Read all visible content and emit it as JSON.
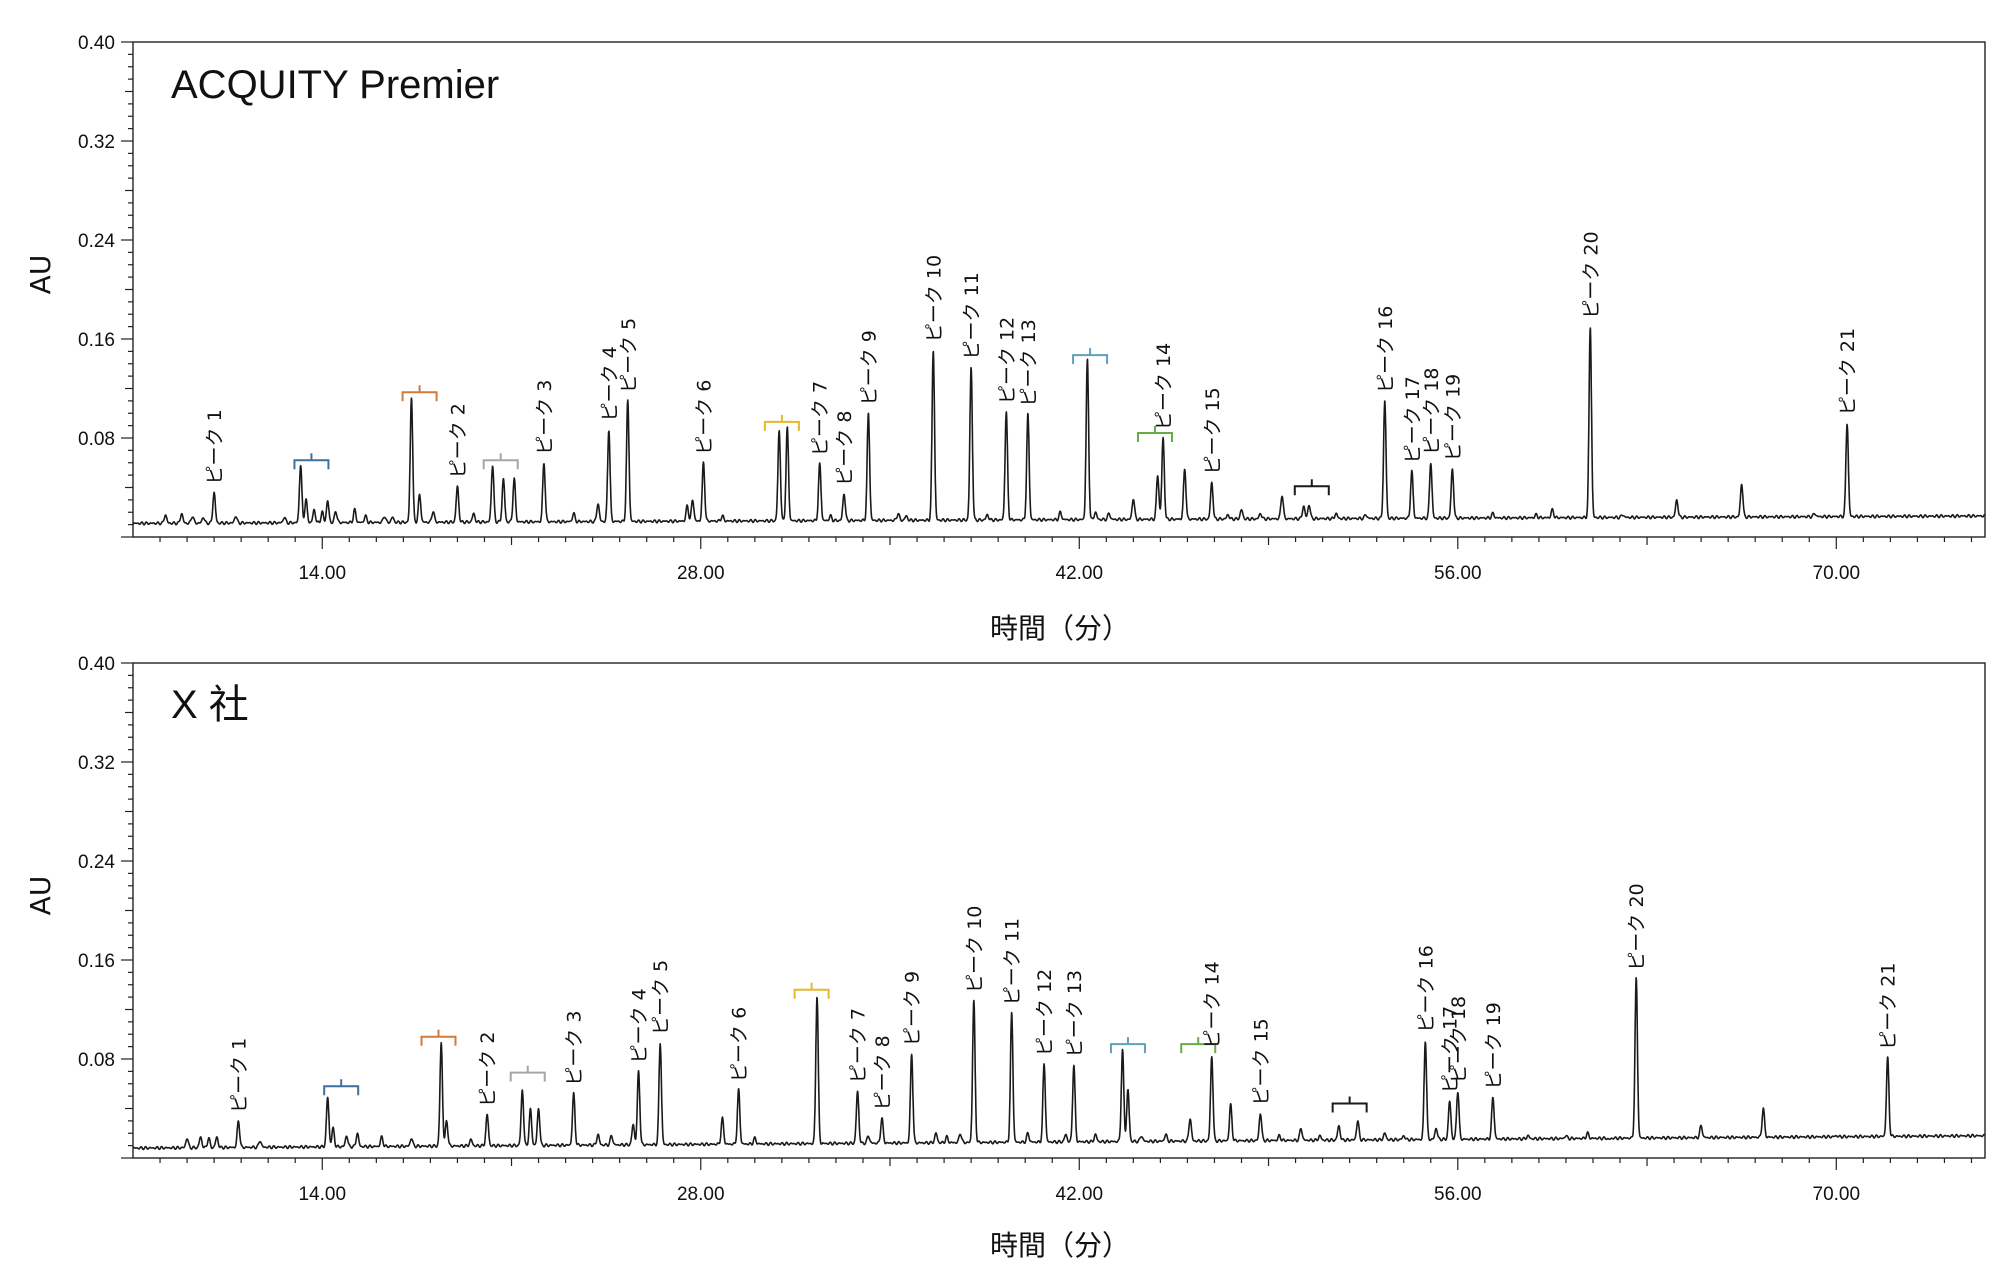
{
  "chart_data": [
    {
      "type": "line",
      "title": "ACQUITY Premier",
      "xlabel": "時間（分）",
      "ylabel": "AU",
      "xlim": [
        7.0,
        75.5
      ],
      "ylim": [
        0,
        0.4
      ],
      "x_ticks": [
        14.0,
        28.0,
        42.0,
        56.0,
        70.0
      ],
      "x_tick_labels": [
        "14.00",
        "28.00",
        "42.00",
        "56.00",
        "70.00"
      ],
      "y_ticks": [
        0.4,
        0.32,
        0.24,
        0.16,
        0.08
      ],
      "y_tick_labels": [
        "0.40",
        "0.32",
        "0.24",
        "0.16",
        "0.08"
      ],
      "grid": false,
      "baseline": [
        [
          7.0,
          0.011
        ],
        [
          75.5,
          0.017
        ]
      ],
      "peaks": [
        {
          "x": 8.2,
          "y": 0.018
        },
        {
          "x": 8.8,
          "y": 0.019
        },
        {
          "x": 9.2,
          "y": 0.017
        },
        {
          "x": 9.6,
          "y": 0.016
        },
        {
          "x": 10.0,
          "y": 0.036,
          "label": "ピーク 1"
        },
        {
          "x": 10.8,
          "y": 0.017
        },
        {
          "x": 12.6,
          "y": 0.016
        },
        {
          "x": 13.2,
          "y": 0.058
        },
        {
          "x": 13.4,
          "y": 0.03
        },
        {
          "x": 13.7,
          "y": 0.022
        },
        {
          "x": 14.0,
          "y": 0.02
        },
        {
          "x": 14.2,
          "y": 0.029
        },
        {
          "x": 14.5,
          "y": 0.021
        },
        {
          "x": 15.2,
          "y": 0.022
        },
        {
          "x": 15.6,
          "y": 0.017
        },
        {
          "x": 16.3,
          "y": 0.017
        },
        {
          "x": 16.6,
          "y": 0.016
        },
        {
          "x": 17.3,
          "y": 0.113
        },
        {
          "x": 17.6,
          "y": 0.034
        },
        {
          "x": 18.1,
          "y": 0.021
        },
        {
          "x": 19.0,
          "y": 0.041,
          "label": "ピーク 2"
        },
        {
          "x": 19.6,
          "y": 0.019
        },
        {
          "x": 20.3,
          "y": 0.058
        },
        {
          "x": 20.7,
          "y": 0.047
        },
        {
          "x": 21.1,
          "y": 0.047
        },
        {
          "x": 22.2,
          "y": 0.06,
          "label": "ピーク 3"
        },
        {
          "x": 23.3,
          "y": 0.019
        },
        {
          "x": 24.2,
          "y": 0.027
        },
        {
          "x": 24.6,
          "y": 0.087,
          "label": "ピーク 4"
        },
        {
          "x": 25.3,
          "y": 0.11,
          "label": "ピーク 5"
        },
        {
          "x": 27.5,
          "y": 0.025
        },
        {
          "x": 27.7,
          "y": 0.03
        },
        {
          "x": 28.1,
          "y": 0.06,
          "label": "ピーク 6"
        },
        {
          "x": 28.8,
          "y": 0.017
        },
        {
          "x": 30.9,
          "y": 0.086
        },
        {
          "x": 31.2,
          "y": 0.088
        },
        {
          "x": 32.4,
          "y": 0.059,
          "label": "ピーク 7"
        },
        {
          "x": 32.8,
          "y": 0.017
        },
        {
          "x": 33.3,
          "y": 0.035,
          "label": "ピーク 8"
        },
        {
          "x": 34.2,
          "y": 0.1,
          "label": "ピーク 9"
        },
        {
          "x": 35.3,
          "y": 0.019
        },
        {
          "x": 35.6,
          "y": 0.017
        },
        {
          "x": 36.6,
          "y": 0.151,
          "label": "ピーク 10"
        },
        {
          "x": 38.0,
          "y": 0.137,
          "label": "ピーク 11"
        },
        {
          "x": 38.6,
          "y": 0.018
        },
        {
          "x": 39.3,
          "y": 0.101,
          "label": "ピーク 12"
        },
        {
          "x": 40.1,
          "y": 0.099,
          "label": "ピーク 13"
        },
        {
          "x": 41.3,
          "y": 0.02
        },
        {
          "x": 42.3,
          "y": 0.143
        },
        {
          "x": 42.6,
          "y": 0.02
        },
        {
          "x": 43.1,
          "y": 0.019
        },
        {
          "x": 44.0,
          "y": 0.031
        },
        {
          "x": 44.9,
          "y": 0.05
        },
        {
          "x": 45.1,
          "y": 0.08,
          "label": "ピーク 14"
        },
        {
          "x": 45.9,
          "y": 0.055
        },
        {
          "x": 46.9,
          "y": 0.044,
          "label": "ピーク 15"
        },
        {
          "x": 47.5,
          "y": 0.018
        },
        {
          "x": 48.0,
          "y": 0.022
        },
        {
          "x": 48.7,
          "y": 0.019
        },
        {
          "x": 49.5,
          "y": 0.034
        },
        {
          "x": 50.3,
          "y": 0.025
        },
        {
          "x": 50.5,
          "y": 0.026
        },
        {
          "x": 51.5,
          "y": 0.019
        },
        {
          "x": 52.6,
          "y": 0.018
        },
        {
          "x": 53.3,
          "y": 0.11,
          "label": "ピーク 16"
        },
        {
          "x": 54.3,
          "y": 0.053,
          "label": "ピーク 17"
        },
        {
          "x": 55.0,
          "y": 0.06,
          "label": "ピーク 18"
        },
        {
          "x": 55.8,
          "y": 0.055,
          "label": "ピーク 19"
        },
        {
          "x": 57.3,
          "y": 0.019
        },
        {
          "x": 58.9,
          "y": 0.018
        },
        {
          "x": 59.5,
          "y": 0.022
        },
        {
          "x": 60.9,
          "y": 0.17,
          "label": "ピーク 20"
        },
        {
          "x": 62.1,
          "y": 0.018
        },
        {
          "x": 64.1,
          "y": 0.03
        },
        {
          "x": 66.5,
          "y": 0.043
        },
        {
          "x": 69.2,
          "y": 0.019
        },
        {
          "x": 70.4,
          "y": 0.092,
          "label": "ピーク 21"
        }
      ],
      "brackets": [
        {
          "x": 13.6,
          "y": 0.062,
          "color": "#3d6fa3"
        },
        {
          "x": 17.6,
          "y": 0.117,
          "color": "#d27a3a"
        },
        {
          "x": 20.6,
          "y": 0.062,
          "color": "#a6a6a6"
        },
        {
          "x": 31.0,
          "y": 0.093,
          "color": "#e8b62c"
        },
        {
          "x": 42.4,
          "y": 0.147,
          "color": "#5fa0bd"
        },
        {
          "x": 44.8,
          "y": 0.084,
          "color": "#6aab45"
        },
        {
          "x": 50.6,
          "y": 0.041,
          "color": "#1a1a1a"
        }
      ]
    },
    {
      "type": "line",
      "title": "X 社",
      "xlabel": "時間（分）",
      "ylabel": "AU",
      "xlim": [
        7.0,
        75.5
      ],
      "ylim": [
        0,
        0.4
      ],
      "x_ticks": [
        14.0,
        28.0,
        42.0,
        56.0,
        70.0
      ],
      "x_tick_labels": [
        "14.00",
        "28.00",
        "42.00",
        "56.00",
        "70.00"
      ],
      "y_ticks": [
        0.4,
        0.32,
        0.24,
        0.16,
        0.08
      ],
      "y_tick_labels": [
        "0.40",
        "0.32",
        "0.24",
        "0.16",
        "0.08"
      ],
      "grid": false,
      "baseline": [
        [
          7.0,
          0.008
        ],
        [
          75.5,
          0.018
        ]
      ],
      "peaks": [
        {
          "x": 9.0,
          "y": 0.016
        },
        {
          "x": 9.5,
          "y": 0.017
        },
        {
          "x": 9.8,
          "y": 0.016
        },
        {
          "x": 10.1,
          "y": 0.017
        },
        {
          "x": 10.9,
          "y": 0.03,
          "label": "ピーク 1"
        },
        {
          "x": 11.7,
          "y": 0.014
        },
        {
          "x": 14.2,
          "y": 0.049
        },
        {
          "x": 14.4,
          "y": 0.024
        },
        {
          "x": 14.9,
          "y": 0.018
        },
        {
          "x": 15.3,
          "y": 0.02
        },
        {
          "x": 16.2,
          "y": 0.017
        },
        {
          "x": 17.3,
          "y": 0.016
        },
        {
          "x": 18.4,
          "y": 0.093
        },
        {
          "x": 18.6,
          "y": 0.03
        },
        {
          "x": 19.5,
          "y": 0.015
        },
        {
          "x": 20.1,
          "y": 0.035,
          "label": "ピーク 2"
        },
        {
          "x": 21.4,
          "y": 0.055
        },
        {
          "x": 21.7,
          "y": 0.039
        },
        {
          "x": 22.0,
          "y": 0.04
        },
        {
          "x": 23.3,
          "y": 0.052,
          "label": "ピーク 3"
        },
        {
          "x": 24.2,
          "y": 0.019
        },
        {
          "x": 24.7,
          "y": 0.018
        },
        {
          "x": 25.5,
          "y": 0.027
        },
        {
          "x": 25.7,
          "y": 0.07,
          "label": "ピーク 4"
        },
        {
          "x": 26.5,
          "y": 0.093,
          "label": "ピーク 5"
        },
        {
          "x": 28.8,
          "y": 0.032
        },
        {
          "x": 29.4,
          "y": 0.055,
          "label": "ピーク 6"
        },
        {
          "x": 30.0,
          "y": 0.016
        },
        {
          "x": 32.3,
          "y": 0.131
        },
        {
          "x": 33.8,
          "y": 0.054,
          "label": "ピーク 7"
        },
        {
          "x": 34.2,
          "y": 0.018
        },
        {
          "x": 34.7,
          "y": 0.032,
          "label": "ピーク 8"
        },
        {
          "x": 35.8,
          "y": 0.084,
          "label": "ピーク 9"
        },
        {
          "x": 36.7,
          "y": 0.02
        },
        {
          "x": 37.1,
          "y": 0.017
        },
        {
          "x": 37.6,
          "y": 0.02
        },
        {
          "x": 38.1,
          "y": 0.127,
          "label": "ピーク 10"
        },
        {
          "x": 39.5,
          "y": 0.117,
          "label": "ピーク 11"
        },
        {
          "x": 40.1,
          "y": 0.02
        },
        {
          "x": 40.7,
          "y": 0.076,
          "label": "ピーク 12"
        },
        {
          "x": 41.5,
          "y": 0.019
        },
        {
          "x": 41.8,
          "y": 0.075,
          "label": "ピーク 13"
        },
        {
          "x": 42.6,
          "y": 0.019
        },
        {
          "x": 43.6,
          "y": 0.087
        },
        {
          "x": 43.8,
          "y": 0.055
        },
        {
          "x": 44.3,
          "y": 0.018
        },
        {
          "x": 45.2,
          "y": 0.019
        },
        {
          "x": 46.1,
          "y": 0.032
        },
        {
          "x": 46.9,
          "y": 0.082,
          "label": "ピーク 14"
        },
        {
          "x": 47.6,
          "y": 0.043
        },
        {
          "x": 48.7,
          "y": 0.036,
          "label": "ピーク 15"
        },
        {
          "x": 49.4,
          "y": 0.018
        },
        {
          "x": 50.2,
          "y": 0.024
        },
        {
          "x": 50.9,
          "y": 0.018
        },
        {
          "x": 51.6,
          "y": 0.026
        },
        {
          "x": 52.3,
          "y": 0.03
        },
        {
          "x": 53.3,
          "y": 0.02
        },
        {
          "x": 54.0,
          "y": 0.018
        },
        {
          "x": 54.8,
          "y": 0.095,
          "label": "ピーク 16"
        },
        {
          "x": 55.2,
          "y": 0.024
        },
        {
          "x": 55.7,
          "y": 0.046,
          "label": "ピーク 17"
        },
        {
          "x": 56.0,
          "y": 0.054,
          "label": "ピーク 18"
        },
        {
          "x": 57.3,
          "y": 0.049,
          "label": "ピーク 19"
        },
        {
          "x": 58.6,
          "y": 0.018
        },
        {
          "x": 60.0,
          "y": 0.018
        },
        {
          "x": 60.8,
          "y": 0.02
        },
        {
          "x": 61.6,
          "y": 0.015
        },
        {
          "x": 62.6,
          "y": 0.145,
          "label": "ピーク 20"
        },
        {
          "x": 65.0,
          "y": 0.026
        },
        {
          "x": 67.3,
          "y": 0.04
        },
        {
          "x": 70.0,
          "y": 0.018
        },
        {
          "x": 71.9,
          "y": 0.081,
          "label": "ピーク 21"
        }
      ],
      "brackets": [
        {
          "x": 14.7,
          "y": 0.058,
          "color": "#3d6fa3"
        },
        {
          "x": 18.3,
          "y": 0.098,
          "color": "#d27a3a"
        },
        {
          "x": 21.6,
          "y": 0.069,
          "color": "#a6a6a6"
        },
        {
          "x": 32.1,
          "y": 0.136,
          "color": "#e8b62c"
        },
        {
          "x": 43.8,
          "y": 0.092,
          "color": "#5fa0bd"
        },
        {
          "x": 46.4,
          "y": 0.092,
          "color": "#6aab45"
        },
        {
          "x": 52.0,
          "y": 0.044,
          "color": "#1a1a1a"
        }
      ]
    }
  ]
}
